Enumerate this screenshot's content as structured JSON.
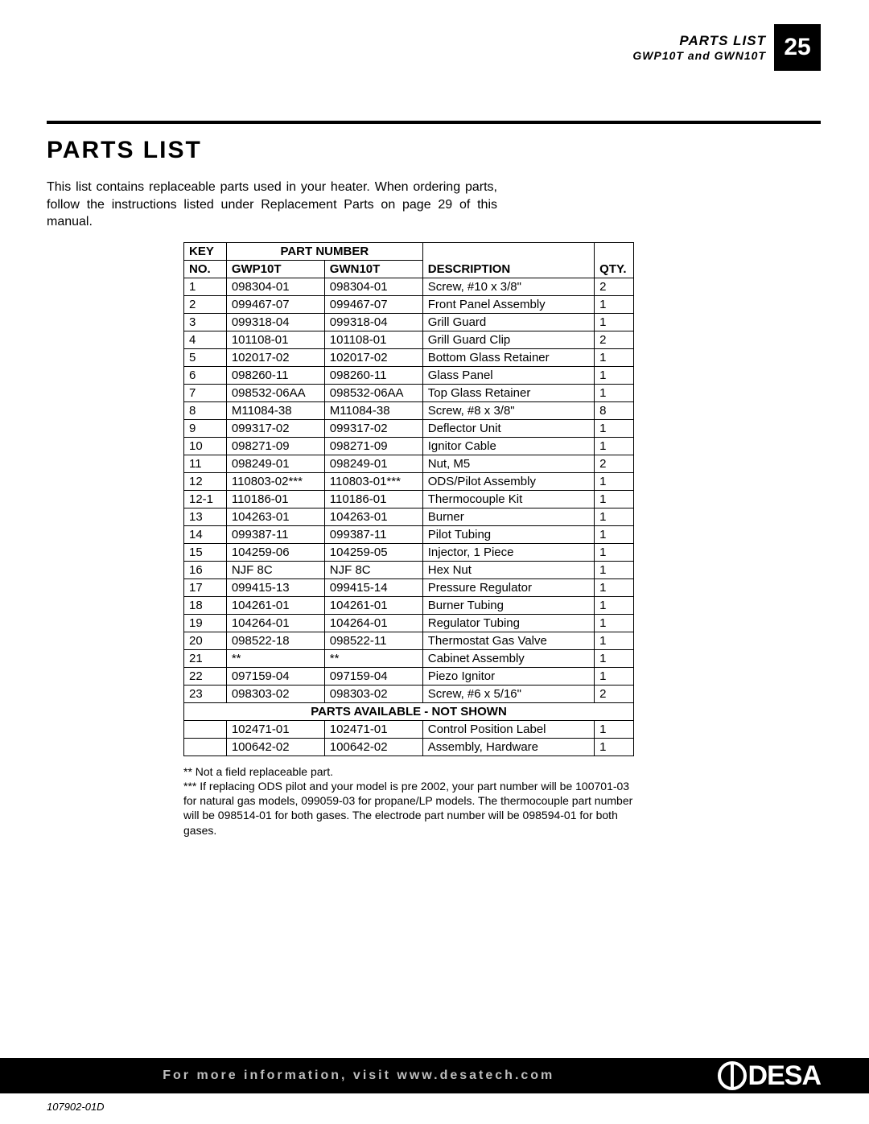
{
  "header": {
    "title": "PARTS LIST",
    "subtitle": "GWP10T and GWN10T",
    "page_number": "25"
  },
  "section_title": "PARTS LIST",
  "intro": "This list contains replaceable parts used in your heater. When ordering parts, follow the instructions listed under Replacement Parts on page 29 of this manual.",
  "table": {
    "head": {
      "key": "KEY",
      "no": "NO.",
      "part_number": "PART NUMBER",
      "gwp": "GWP10T",
      "gwn": "GWN10T",
      "desc": "DESCRIPTION",
      "qty": "QTY."
    },
    "rows": [
      {
        "key": "1",
        "gwp": "098304-01",
        "gwn": "098304-01",
        "desc": "Screw, #10 x 3/8\"",
        "qty": "2"
      },
      {
        "key": "2",
        "gwp": "099467-07",
        "gwn": "099467-07",
        "desc": "Front Panel Assembly",
        "qty": "1"
      },
      {
        "key": "3",
        "gwp": "099318-04",
        "gwn": "099318-04",
        "desc": "Grill Guard",
        "qty": "1"
      },
      {
        "key": "4",
        "gwp": "101108-01",
        "gwn": "101108-01",
        "desc": "Grill Guard Clip",
        "qty": "2"
      },
      {
        "key": "5",
        "gwp": "102017-02",
        "gwn": "102017-02",
        "desc": "Bottom Glass Retainer",
        "qty": "1"
      },
      {
        "key": "6",
        "gwp": "098260-11",
        "gwn": "098260-11",
        "desc": "Glass Panel",
        "qty": "1"
      },
      {
        "key": "7",
        "gwp": "098532-06AA",
        "gwn": "098532-06AA",
        "desc": "Top Glass Retainer",
        "qty": "1"
      },
      {
        "key": "8",
        "gwp": "M11084-38",
        "gwn": "M11084-38",
        "desc": "Screw, #8 x 3/8\"",
        "qty": "8"
      },
      {
        "key": "9",
        "gwp": "099317-02",
        "gwn": "099317-02",
        "desc": "Deflector Unit",
        "qty": "1"
      },
      {
        "key": "10",
        "gwp": "098271-09",
        "gwn": "098271-09",
        "desc": "Ignitor Cable",
        "qty": "1"
      },
      {
        "key": "11",
        "gwp": "098249-01",
        "gwn": "098249-01",
        "desc": "Nut, M5",
        "qty": "2"
      },
      {
        "key": "12",
        "gwp": "110803-02***",
        "gwn": "110803-01***",
        "desc": "ODS/Pilot Assembly",
        "qty": "1"
      },
      {
        "key": "12-1",
        "gwp": "110186-01",
        "gwn": "110186-01",
        "desc": "Thermocouple Kit",
        "qty": "1"
      },
      {
        "key": "13",
        "gwp": "104263-01",
        "gwn": "104263-01",
        "desc": "Burner",
        "qty": "1"
      },
      {
        "key": "14",
        "gwp": "099387-11",
        "gwn": "099387-11",
        "desc": "Pilot Tubing",
        "qty": "1"
      },
      {
        "key": "15",
        "gwp": "104259-06",
        "gwn": "104259-05",
        "desc": "Injector, 1 Piece",
        "qty": "1"
      },
      {
        "key": "16",
        "gwp": "NJF 8C",
        "gwn": "NJF 8C",
        "desc": "Hex Nut",
        "qty": "1"
      },
      {
        "key": "17",
        "gwp": "099415-13",
        "gwn": "099415-14",
        "desc": "Pressure Regulator",
        "qty": "1"
      },
      {
        "key": "18",
        "gwp": "104261-01",
        "gwn": "104261-01",
        "desc": "Burner Tubing",
        "qty": "1"
      },
      {
        "key": "19",
        "gwp": "104264-01",
        "gwn": "104264-01",
        "desc": "Regulator Tubing",
        "qty": "1"
      },
      {
        "key": "20",
        "gwp": "098522-18",
        "gwn": "098522-11",
        "desc": "Thermostat Gas Valve",
        "qty": "1"
      },
      {
        "key": "21",
        "gwp": "**",
        "gwn": "**",
        "desc": "Cabinet Assembly",
        "qty": "1"
      },
      {
        "key": "22",
        "gwp": "097159-04",
        "gwn": "097159-04",
        "desc": "Piezo Ignitor",
        "qty": "1"
      },
      {
        "key": "23",
        "gwp": "098303-02",
        "gwn": "098303-02",
        "desc": "Screw, #6 x 5/16\"",
        "qty": "2"
      }
    ],
    "section_label": "PARTS AVAILABLE - NOT SHOWN",
    "rows2": [
      {
        "key": "",
        "gwp": "102471-01",
        "gwn": "102471-01",
        "desc": "Control Position Label",
        "qty": "1"
      },
      {
        "key": "",
        "gwp": "100642-02",
        "gwn": "100642-02",
        "desc": "Assembly, Hardware",
        "qty": "1"
      }
    ]
  },
  "notes": {
    "n1": "** Not a field replaceable part.",
    "n2": "*** If replacing ODS pilot and your model is pre 2002, your part number will be 100701-03 for natural gas models, 099059-03 for propane/LP models. The thermocouple part number will be 098514-01 for both gases. The electrode part number will be 098594-01 for both gases."
  },
  "footer": {
    "text": "For more information, visit www.desatech.com",
    "logo_text": "DESA"
  },
  "doc_id": "107902-01D"
}
